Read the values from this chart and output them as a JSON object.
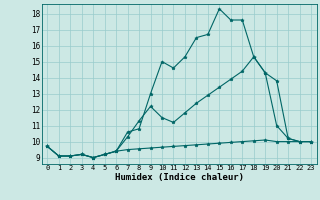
{
  "xlabel": "Humidex (Indice chaleur)",
  "background_color": "#cce8e4",
  "grid_color": "#99cccc",
  "line_color": "#006666",
  "xlim": [
    -0.5,
    23.5
  ],
  "ylim": [
    8.6,
    18.6
  ],
  "xticks": [
    0,
    1,
    2,
    3,
    4,
    5,
    6,
    7,
    8,
    9,
    10,
    11,
    12,
    13,
    14,
    15,
    16,
    17,
    18,
    19,
    20,
    21,
    22,
    23
  ],
  "yticks": [
    9,
    10,
    11,
    12,
    13,
    14,
    15,
    16,
    17,
    18
  ],
  "line1_x": [
    0,
    1,
    2,
    3,
    4,
    5,
    6,
    7,
    8,
    9,
    10,
    11,
    12,
    13,
    14,
    15,
    16,
    17,
    18,
    19,
    20,
    21,
    22,
    23
  ],
  "line1_y": [
    9.7,
    9.1,
    9.1,
    9.2,
    9.0,
    9.2,
    9.4,
    10.6,
    10.8,
    13.0,
    15.0,
    14.6,
    15.3,
    16.5,
    16.7,
    18.3,
    17.6,
    17.6,
    15.3,
    14.3,
    11.0,
    10.2,
    10.0,
    10.0
  ],
  "line2_x": [
    0,
    1,
    2,
    3,
    4,
    5,
    6,
    7,
    8,
    9,
    10,
    11,
    12,
    13,
    14,
    15,
    16,
    17,
    18,
    19,
    20,
    21,
    22,
    23
  ],
  "line2_y": [
    9.7,
    9.1,
    9.1,
    9.2,
    9.0,
    9.2,
    9.4,
    10.3,
    11.3,
    12.2,
    11.5,
    11.2,
    11.8,
    12.4,
    12.9,
    13.4,
    13.9,
    14.4,
    15.3,
    14.3,
    13.8,
    10.2,
    10.0,
    10.0
  ],
  "line3_x": [
    0,
    1,
    2,
    3,
    4,
    5,
    6,
    7,
    8,
    9,
    10,
    11,
    12,
    13,
    14,
    15,
    16,
    17,
    18,
    19,
    20,
    21,
    22,
    23
  ],
  "line3_y": [
    9.7,
    9.1,
    9.1,
    9.2,
    9.0,
    9.2,
    9.4,
    9.5,
    9.55,
    9.6,
    9.65,
    9.7,
    9.75,
    9.8,
    9.85,
    9.9,
    9.95,
    10.0,
    10.05,
    10.1,
    10.0,
    10.0,
    10.0,
    10.0
  ]
}
